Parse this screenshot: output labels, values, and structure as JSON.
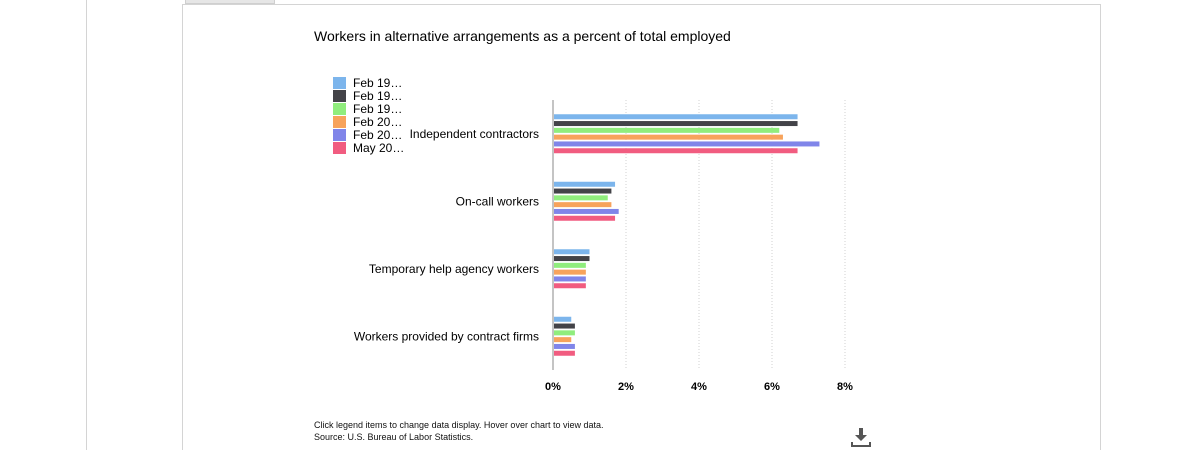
{
  "chart_data": {
    "type": "bar",
    "orientation": "horizontal",
    "title": "Workers in alternative arrangements as a percent of total employed",
    "categories": [
      "Independent contractors",
      "On-call workers",
      "Temporary help agency workers",
      "Workers provided by contract firms"
    ],
    "series": [
      {
        "name": "Feb 19…",
        "color": "#7cb5ec",
        "values": [
          6.7,
          1.7,
          1.0,
          0.5
        ]
      },
      {
        "name": "Feb 19…",
        "color": "#434348",
        "values": [
          6.7,
          1.6,
          1.0,
          0.6
        ]
      },
      {
        "name": "Feb 19…",
        "color": "#90ed7d",
        "values": [
          6.2,
          1.5,
          0.9,
          0.6
        ]
      },
      {
        "name": "Feb 20…",
        "color": "#f7a35c",
        "values": [
          6.3,
          1.6,
          0.9,
          0.5
        ]
      },
      {
        "name": "Feb 20…",
        "color": "#8085e9",
        "values": [
          7.3,
          1.8,
          0.9,
          0.6
        ]
      },
      {
        "name": "May 20…",
        "color": "#f15c80",
        "values": [
          6.7,
          1.7,
          0.9,
          0.6
        ]
      }
    ],
    "xlim": [
      0,
      8
    ],
    "xticks": [
      "0%",
      "2%",
      "4%",
      "6%",
      "8%"
    ],
    "grid": true,
    "legend_position": "top-left"
  },
  "footer": {
    "instructions": "Click legend items to change data display. Hover over chart to view data.",
    "source": "Source: U.S. Bureau of Labor Statistics."
  },
  "icons": {
    "download": "download-icon"
  }
}
